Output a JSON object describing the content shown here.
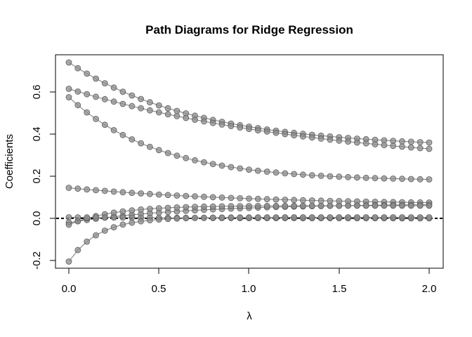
{
  "chart_data": {
    "type": "line",
    "title": "Path Diagrams for Ridge Regression",
    "xlabel": "λ",
    "ylabel": "Coefficients",
    "xlim": [
      0,
      2
    ],
    "ylim": [
      -0.2,
      0.7
    ],
    "x_ticks": [
      "0.0",
      "0.5",
      "1.0",
      "1.5",
      "2.0"
    ],
    "y_ticks": [
      "-0.2",
      "0.0",
      "0.2",
      "0.4",
      "0.6"
    ],
    "grid": false,
    "legend": "none",
    "marker": "circle",
    "reference_line": {
      "y": 0,
      "style": "dashed"
    },
    "x": [
      0.0,
      0.05,
      0.1,
      0.15,
      0.2,
      0.25,
      0.3,
      0.35,
      0.4,
      0.45,
      0.5,
      0.55,
      0.6,
      0.65,
      0.7,
      0.75,
      0.8,
      0.85,
      0.9,
      0.95,
      1.0,
      1.05,
      1.1,
      1.15,
      1.2,
      1.25,
      1.3,
      1.35,
      1.4,
      1.45,
      1.5,
      1.55,
      1.6,
      1.65,
      1.7,
      1.75,
      1.8,
      1.85,
      1.9,
      1.95,
      2.0
    ],
    "series": [
      {
        "start": 0.74,
        "end": 0.36,
        "k": 1.4
      },
      {
        "start": 0.615,
        "end": 0.33,
        "k": 0.7
      },
      {
        "start": 0.575,
        "end": 0.185,
        "k": 2.0
      },
      {
        "start": 0.145,
        "end": 0.075,
        "k": 1.0
      },
      {
        "start": -0.02,
        "end": 0.065,
        "k": 1.5
      },
      {
        "start": -0.03,
        "end": 0.06,
        "k": 4.0
      },
      {
        "start": 0.005,
        "end": 0.0,
        "k": 1.0
      },
      {
        "start": -0.205,
        "end": 0.005,
        "k": 6.0
      }
    ],
    "colors": {
      "point": "#8c8c8c",
      "point_edge": "#5e5e5e",
      "line": "#777777",
      "axis": "#000000"
    }
  }
}
